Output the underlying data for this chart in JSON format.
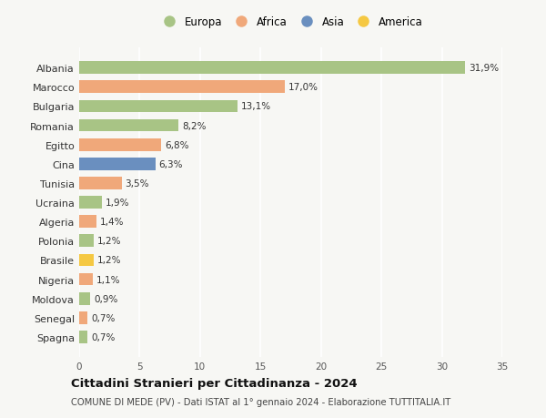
{
  "countries": [
    "Albania",
    "Marocco",
    "Bulgaria",
    "Romania",
    "Egitto",
    "Cina",
    "Tunisia",
    "Ucraina",
    "Algeria",
    "Polonia",
    "Brasile",
    "Nigeria",
    "Moldova",
    "Senegal",
    "Spagna"
  ],
  "values": [
    31.9,
    17.0,
    13.1,
    8.2,
    6.8,
    6.3,
    3.5,
    1.9,
    1.4,
    1.2,
    1.2,
    1.1,
    0.9,
    0.7,
    0.7
  ],
  "labels": [
    "31,9%",
    "17,0%",
    "13,1%",
    "8,2%",
    "6,8%",
    "6,3%",
    "3,5%",
    "1,9%",
    "1,4%",
    "1,2%",
    "1,2%",
    "1,1%",
    "0,9%",
    "0,7%",
    "0,7%"
  ],
  "continents": [
    "Europa",
    "Africa",
    "Europa",
    "Europa",
    "Africa",
    "Asia",
    "Africa",
    "Europa",
    "Africa",
    "Europa",
    "America",
    "Africa",
    "Europa",
    "Africa",
    "Europa"
  ],
  "colors": {
    "Europa": "#a8c485",
    "Africa": "#f0a87a",
    "Asia": "#6a8fbf",
    "America": "#f5c842"
  },
  "legend_order": [
    "Europa",
    "Africa",
    "Asia",
    "America"
  ],
  "legend_colors": [
    "#a8c485",
    "#f0a87a",
    "#6a8fbf",
    "#f5c842"
  ],
  "xlim": [
    0,
    35
  ],
  "xticks": [
    0,
    5,
    10,
    15,
    20,
    25,
    30,
    35
  ],
  "title": "Cittadini Stranieri per Cittadinanza - 2024",
  "subtitle": "COMUNE DI MEDE (PV) - Dati ISTAT al 1° gennaio 2024 - Elaborazione TUTTITALIA.IT",
  "background_color": "#f7f7f4",
  "grid_color": "#ffffff",
  "bar_height": 0.65,
  "label_fontsize": 7.5,
  "ytick_fontsize": 8,
  "xtick_fontsize": 7.5
}
